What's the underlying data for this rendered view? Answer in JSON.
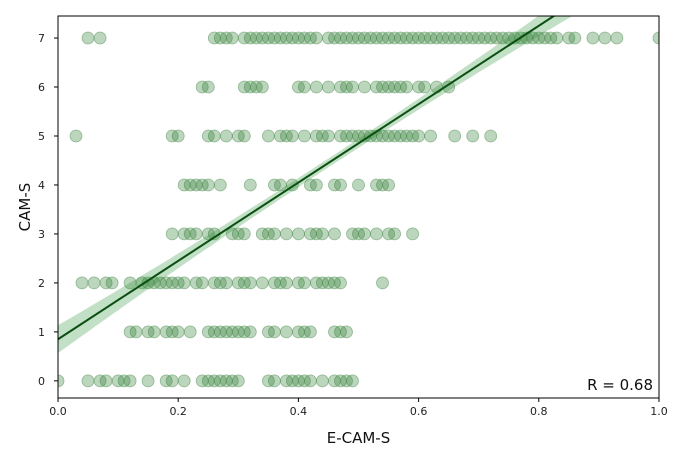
{
  "chart_data": {
    "type": "scatter",
    "title": "",
    "xlabel": "E-CAM-S",
    "ylabel": "CAM-S",
    "xlim": [
      0.0,
      1.0
    ],
    "ylim": [
      -0.35,
      7.45
    ],
    "x_ticks": [
      0.0,
      0.2,
      0.4,
      0.6,
      0.8,
      1.0
    ],
    "x_tick_labels": [
      "0.0",
      "0.2",
      "0.4",
      "0.6",
      "0.8",
      "1.0"
    ],
    "y_ticks": [
      0,
      1,
      2,
      3,
      4,
      5,
      6,
      7
    ],
    "y_tick_labels": [
      "0",
      "1",
      "2",
      "3",
      "4",
      "5",
      "6",
      "7"
    ],
    "grid": false,
    "legend": "none",
    "annotation": "R = 0.68",
    "annotation_position": "bottom-right",
    "colors": {
      "points": "#2e7d32",
      "line": "#0b4f12",
      "band": "#8fc796",
      "axes": "#000000"
    },
    "regression": {
      "intercept": 0.85,
      "slope": 8.0,
      "ci_halfwidth_at_ends": 0.38,
      "ci_halfwidth_at_center": 0.09,
      "center_x": 0.45
    },
    "series": [
      {
        "level": 7,
        "x": [
          0.05,
          0.07,
          0.26,
          0.27,
          0.28,
          0.29,
          0.31,
          0.32,
          0.33,
          0.34,
          0.35,
          0.36,
          0.37,
          0.38,
          0.39,
          0.4,
          0.41,
          0.42,
          0.43,
          0.45,
          0.46,
          0.47,
          0.48,
          0.49,
          0.5,
          0.51,
          0.52,
          0.53,
          0.54,
          0.55,
          0.56,
          0.57,
          0.58,
          0.59,
          0.6,
          0.61,
          0.62,
          0.63,
          0.64,
          0.65,
          0.66,
          0.67,
          0.68,
          0.69,
          0.7,
          0.71,
          0.72,
          0.73,
          0.74,
          0.75,
          0.76,
          0.77,
          0.78,
          0.79,
          0.8,
          0.81,
          0.82,
          0.83,
          0.85,
          0.86,
          0.89,
          0.91,
          0.93,
          1.0
        ]
      },
      {
        "level": 6,
        "x": [
          0.24,
          0.25,
          0.31,
          0.32,
          0.33,
          0.34,
          0.4,
          0.41,
          0.43,
          0.45,
          0.47,
          0.48,
          0.49,
          0.51,
          0.53,
          0.54,
          0.55,
          0.56,
          0.57,
          0.58,
          0.6,
          0.61,
          0.63,
          0.65
        ]
      },
      {
        "level": 5,
        "x": [
          0.03,
          0.19,
          0.2,
          0.25,
          0.26,
          0.28,
          0.3,
          0.31,
          0.35,
          0.37,
          0.38,
          0.39,
          0.41,
          0.43,
          0.44,
          0.45,
          0.47,
          0.48,
          0.49,
          0.5,
          0.51,
          0.52,
          0.53,
          0.54,
          0.55,
          0.56,
          0.57,
          0.58,
          0.59,
          0.6,
          0.62,
          0.66,
          0.69,
          0.72
        ]
      },
      {
        "level": 4,
        "x": [
          0.21,
          0.22,
          0.23,
          0.24,
          0.25,
          0.27,
          0.32,
          0.36,
          0.37,
          0.39,
          0.42,
          0.43,
          0.46,
          0.47,
          0.5,
          0.53,
          0.54,
          0.55
        ]
      },
      {
        "level": 3,
        "x": [
          0.19,
          0.21,
          0.22,
          0.23,
          0.25,
          0.26,
          0.29,
          0.3,
          0.31,
          0.34,
          0.35,
          0.36,
          0.38,
          0.4,
          0.42,
          0.43,
          0.44,
          0.46,
          0.49,
          0.5,
          0.51,
          0.53,
          0.55,
          0.56,
          0.59
        ]
      },
      {
        "level": 2,
        "x": [
          0.04,
          0.06,
          0.08,
          0.09,
          0.12,
          0.14,
          0.15,
          0.16,
          0.17,
          0.18,
          0.19,
          0.2,
          0.21,
          0.23,
          0.24,
          0.26,
          0.27,
          0.28,
          0.3,
          0.31,
          0.32,
          0.34,
          0.36,
          0.37,
          0.38,
          0.4,
          0.41,
          0.43,
          0.44,
          0.45,
          0.46,
          0.47,
          0.54
        ]
      },
      {
        "level": 1,
        "x": [
          0.12,
          0.13,
          0.15,
          0.16,
          0.18,
          0.19,
          0.2,
          0.22,
          0.25,
          0.26,
          0.27,
          0.28,
          0.29,
          0.3,
          0.31,
          0.32,
          0.35,
          0.36,
          0.38,
          0.4,
          0.41,
          0.42,
          0.46,
          0.47,
          0.48
        ]
      },
      {
        "level": 0,
        "x": [
          0.0,
          0.05,
          0.07,
          0.08,
          0.1,
          0.11,
          0.12,
          0.15,
          0.18,
          0.19,
          0.21,
          0.24,
          0.25,
          0.26,
          0.27,
          0.28,
          0.29,
          0.3,
          0.35,
          0.36,
          0.38,
          0.39,
          0.4,
          0.41,
          0.42,
          0.44,
          0.46,
          0.47,
          0.48,
          0.49
        ]
      }
    ]
  }
}
